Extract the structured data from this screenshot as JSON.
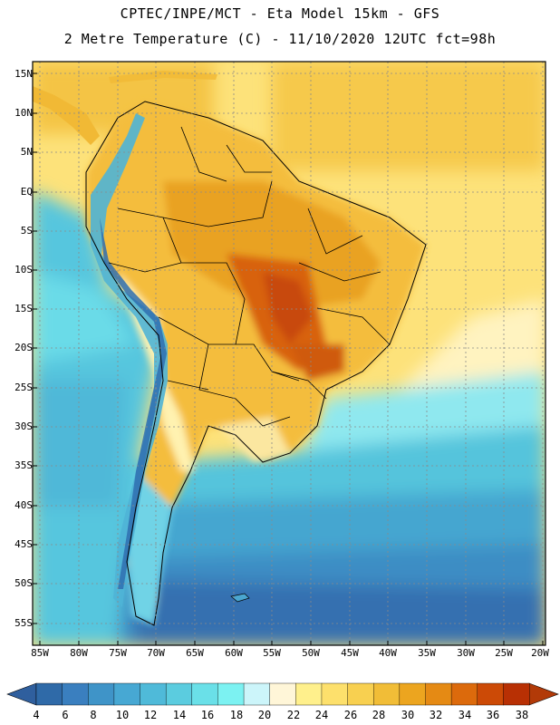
{
  "header": {
    "line1": "CPTEC/INPE/MCT -  Eta Model 15km - GFS",
    "line2": "2 Metre Temperature (C) - 11/10/2020 12UTC fct=98h"
  },
  "map": {
    "lat_labels": [
      "15N",
      "10N",
      "5N",
      "EQ",
      "5S",
      "10S",
      "15S",
      "20S",
      "25S",
      "30S",
      "35S",
      "40S",
      "45S",
      "50S",
      "55S"
    ],
    "lon_labels": [
      "85W",
      "80W",
      "75W",
      "70W",
      "65W",
      "60W",
      "55W",
      "50W",
      "45W",
      "40W",
      "35W",
      "30W",
      "25W",
      "20W"
    ]
  },
  "colorbar": {
    "levels": [
      "4",
      "6",
      "8",
      "10",
      "12",
      "14",
      "16",
      "18",
      "20",
      "22",
      "24",
      "26",
      "28",
      "30",
      "32",
      "34",
      "36",
      "38"
    ],
    "colors": [
      "#2f6aa8",
      "#3a7fbf",
      "#3f94c8",
      "#47a8d3",
      "#4fbad9",
      "#5bccdf",
      "#6ae0e8",
      "#7cf2f2",
      "#ccf5fa",
      "#fff6d8",
      "#fff08c",
      "#fde06c",
      "#f8d050",
      "#f1bd37",
      "#eca51f",
      "#e58a14",
      "#dc6a0c",
      "#cc4a06",
      "#b83004"
    ],
    "under_color": "#2f5f9e",
    "over_color": "#b23a08"
  }
}
